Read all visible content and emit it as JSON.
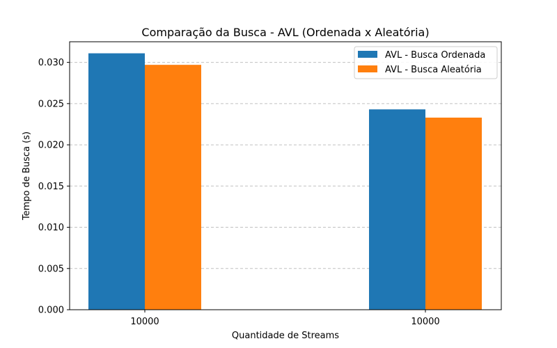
{
  "chart_data": {
    "type": "bar",
    "title": "Comparação da Busca - AVL (Ordenada x Aleatória)",
    "xlabel": "Quantidade de Streams",
    "ylabel": "Tempo de Busca (s)",
    "categories": [
      "10000",
      "10000"
    ],
    "series": [
      {
        "name": "AVL - Busca Ordenada",
        "color": "#1f77b4",
        "values": [
          0.0311,
          0.0243
        ]
      },
      {
        "name": "AVL - Busca Aleatória",
        "color": "#ff7f0e",
        "values": [
          0.0297,
          0.0233
        ]
      }
    ],
    "ylim": [
      0,
      0.0325
    ],
    "yticks": [
      0.0,
      0.005,
      0.01,
      0.015,
      0.02,
      0.025,
      0.03
    ],
    "ytick_labels": [
      "0.000",
      "0.005",
      "0.010",
      "0.015",
      "0.020",
      "0.025",
      "0.030"
    ],
    "grid": "y-dashed",
    "legend_position": "top-right"
  }
}
